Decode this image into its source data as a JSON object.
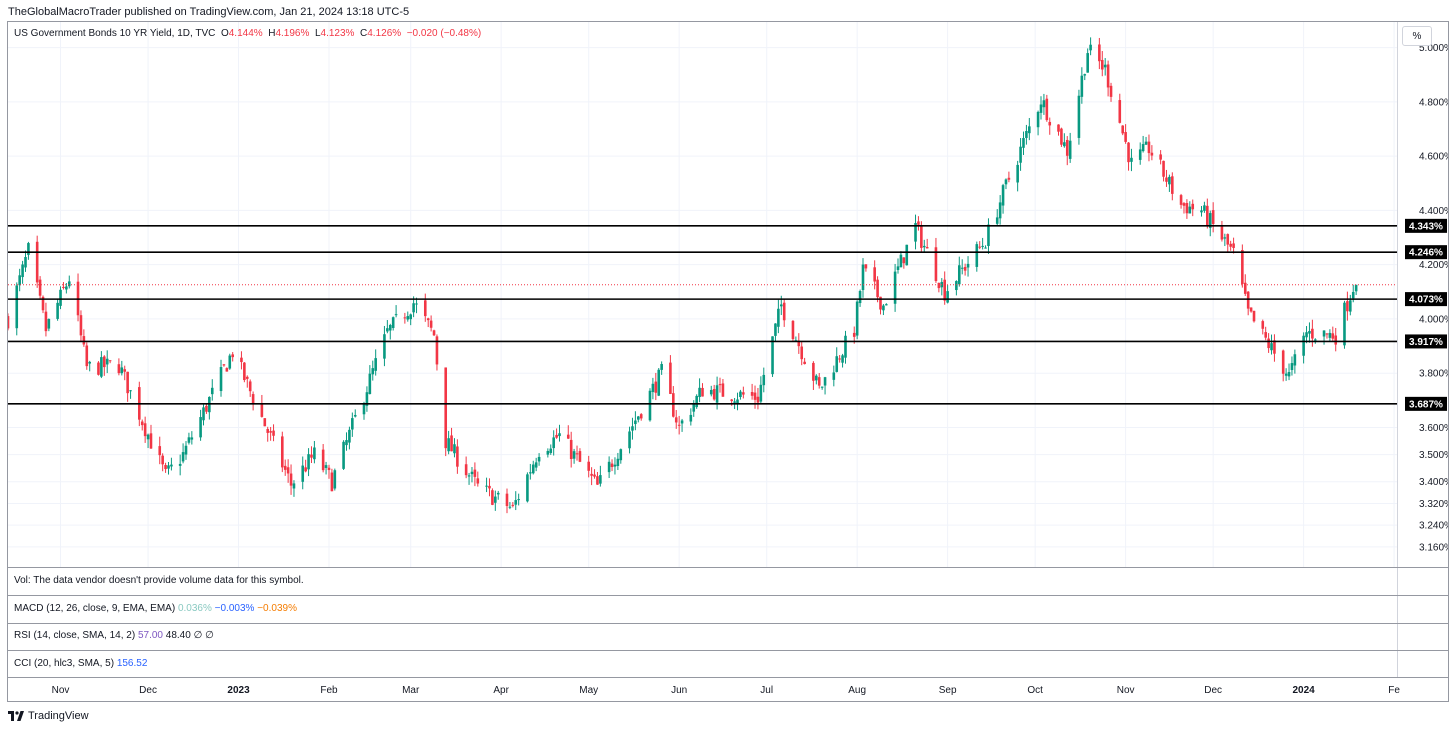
{
  "header": {
    "publisher": "TheGlobalMacroTrader published on TradingView.com, Jan 21, 2024 13:18 UTC-5"
  },
  "legend": {
    "symbol": "US Government Bonds 10 YR Yield, 1D, TVC",
    "o_label": "O",
    "o_value": "4.144%",
    "h_label": "H",
    "h_value": "4.196%",
    "l_label": "L",
    "l_value": "4.123%",
    "c_label": "C",
    "c_value": "4.126%",
    "change": "−0.020 (−0.48%)"
  },
  "scale_button": "%",
  "panes": {
    "vol": "Vol: The data vendor doesn't provide volume data for this symbol.",
    "macd": {
      "label": "MACD (12, 26, close, 9, EMA, EMA)",
      "v1": "0.036%",
      "v2": "−0.003%",
      "v3": "−0.039%"
    },
    "rsi": {
      "label": "RSI (14, close, SMA, 14, 2)",
      "v1": "57.00",
      "v2": "48.40",
      "v3": "∅",
      "v4": "∅"
    },
    "cci": {
      "label": "CCI (20, hlc3, SMA, 5)",
      "v1": "156.52"
    }
  },
  "footer": {
    "brand": "TradingView"
  },
  "chart_data": {
    "type": "candlestick",
    "title": "US Government Bonds 10 YR Yield, 1D, TVC",
    "ylim": [
      3.13,
      5.05
    ],
    "yticks": [
      {
        "v": 5.0,
        "label": "5.000%"
      },
      {
        "v": 4.8,
        "label": "4.800%"
      },
      {
        "v": 4.6,
        "label": "4.600%"
      },
      {
        "v": 4.4,
        "label": "4.400%"
      },
      {
        "v": 4.2,
        "label": "4.200%"
      },
      {
        "v": 4.0,
        "label": "4.000%"
      },
      {
        "v": 3.8,
        "label": "3.800%"
      },
      {
        "v": 3.6,
        "label": "3.600%"
      },
      {
        "v": 3.5,
        "label": "3.500%"
      },
      {
        "v": 3.4,
        "label": "3.400%"
      },
      {
        "v": 3.32,
        "label": "3.320%"
      },
      {
        "v": 3.24,
        "label": "3.240%"
      },
      {
        "v": 3.16,
        "label": "3.160%"
      }
    ],
    "xticks": [
      {
        "t": "2022-11-01",
        "label": "Nov",
        "bold": false
      },
      {
        "t": "2022-12-01",
        "label": "Dec",
        "bold": false
      },
      {
        "t": "2023-01-01",
        "label": "2023",
        "bold": true
      },
      {
        "t": "2023-02-01",
        "label": "Feb",
        "bold": false
      },
      {
        "t": "2023-03-01",
        "label": "Mar",
        "bold": false
      },
      {
        "t": "2023-04-01",
        "label": "Apr",
        "bold": false
      },
      {
        "t": "2023-05-01",
        "label": "May",
        "bold": false
      },
      {
        "t": "2023-06-01",
        "label": "Jun",
        "bold": false
      },
      {
        "t": "2023-07-01",
        "label": "Jul",
        "bold": false
      },
      {
        "t": "2023-08-01",
        "label": "Aug",
        "bold": false
      },
      {
        "t": "2023-09-01",
        "label": "Sep",
        "bold": false
      },
      {
        "t": "2023-10-01",
        "label": "Oct",
        "bold": false
      },
      {
        "t": "2023-11-01",
        "label": "Nov",
        "bold": false
      },
      {
        "t": "2023-12-01",
        "label": "Dec",
        "bold": false
      },
      {
        "t": "2024-01-01",
        "label": "2024",
        "bold": true
      },
      {
        "t": "2024-02-01",
        "label": "Fe",
        "bold": false
      }
    ],
    "xrange": [
      "2022-10-14",
      "2024-02-02"
    ],
    "horizontal_levels": [
      {
        "v": 4.343,
        "label": "4.343%"
      },
      {
        "v": 4.246,
        "label": "4.246%"
      },
      {
        "v": 4.073,
        "label": "4.073%"
      },
      {
        "v": 3.917,
        "label": "3.917%"
      },
      {
        "v": 3.687,
        "label": "3.687%"
      }
    ],
    "last_price": 4.126,
    "path_points": [
      [
        "2022-10-14",
        4.0
      ],
      [
        "2022-10-21",
        4.25
      ],
      [
        "2022-10-27",
        3.96
      ],
      [
        "2022-11-04",
        4.15
      ],
      [
        "2022-11-10",
        3.82
      ],
      [
        "2022-11-21",
        3.83
      ],
      [
        "2022-12-07",
        3.42
      ],
      [
        "2022-12-13",
        3.5
      ],
      [
        "2022-12-30",
        3.88
      ],
      [
        "2023-01-19",
        3.39
      ],
      [
        "2023-01-27",
        3.5
      ],
      [
        "2023-02-02",
        3.4
      ],
      [
        "2023-02-21",
        3.95
      ],
      [
        "2023-03-02",
        4.06
      ],
      [
        "2023-03-09",
        3.94
      ],
      [
        "2023-03-13",
        3.55
      ],
      [
        "2023-03-24",
        3.38
      ],
      [
        "2023-04-05",
        3.3
      ],
      [
        "2023-04-14",
        3.52
      ],
      [
        "2023-04-21",
        3.57
      ],
      [
        "2023-05-04",
        3.38
      ],
      [
        "2023-05-26",
        3.8
      ],
      [
        "2023-06-01",
        3.6
      ],
      [
        "2023-06-09",
        3.74
      ],
      [
        "2023-06-28",
        3.71
      ],
      [
        "2023-07-06",
        4.05
      ],
      [
        "2023-07-19",
        3.74
      ],
      [
        "2023-07-31",
        3.96
      ],
      [
        "2023-08-03",
        4.18
      ],
      [
        "2023-08-10",
        4.05
      ],
      [
        "2023-08-21",
        4.34
      ],
      [
        "2023-08-31",
        4.1
      ],
      [
        "2023-09-14",
        4.29
      ],
      [
        "2023-09-21",
        4.49
      ],
      [
        "2023-10-03",
        4.81
      ],
      [
        "2023-10-12",
        4.62
      ],
      [
        "2023-10-19",
        4.99
      ],
      [
        "2023-10-25",
        4.92
      ],
      [
        "2023-11-03",
        4.57
      ],
      [
        "2023-11-09",
        4.63
      ],
      [
        "2023-11-20",
        4.42
      ],
      [
        "2023-11-27",
        4.4
      ],
      [
        "2023-12-08",
        4.24
      ],
      [
        "2023-12-13",
        4.02
      ],
      [
        "2023-12-27",
        3.79
      ],
      [
        "2024-01-02",
        3.95
      ],
      [
        "2024-01-12",
        3.94
      ],
      [
        "2024-01-18",
        4.12
      ],
      [
        "2024-01-19",
        4.13
      ]
    ]
  }
}
